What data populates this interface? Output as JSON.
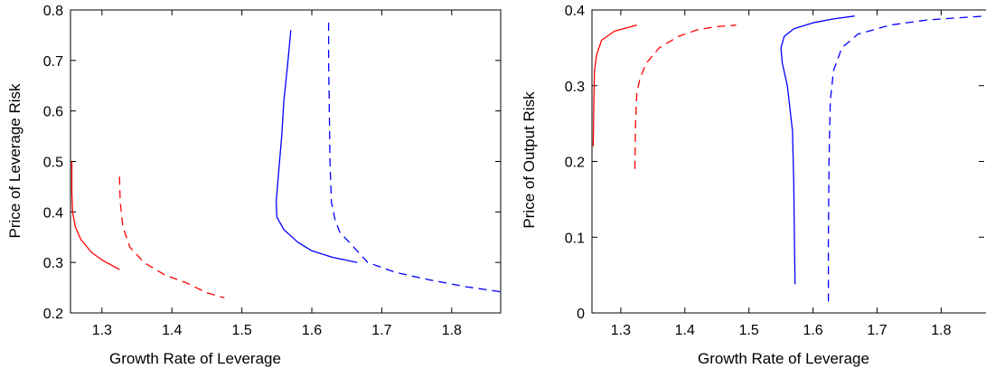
{
  "chart_data": [
    {
      "type": "line",
      "xlabel": "Growth Rate of Leverage",
      "ylabel": "Price of Leverage Risk",
      "xlim": [
        1.255,
        1.87
      ],
      "ylim": [
        0.2,
        0.8
      ],
      "xticks": [
        1.3,
        1.4,
        1.5,
        1.6,
        1.7,
        1.8
      ],
      "yticks": [
        0.2,
        0.3,
        0.4,
        0.5,
        0.6,
        0.7,
        0.8
      ],
      "grid": false,
      "series": [
        {
          "color": "#ff0000",
          "dash": "solid",
          "points": [
            [
              1.257,
              0.5
            ],
            [
              1.257,
              0.44
            ],
            [
              1.258,
              0.4
            ],
            [
              1.262,
              0.37
            ],
            [
              1.27,
              0.345
            ],
            [
              1.285,
              0.32
            ],
            [
              1.3,
              0.305
            ],
            [
              1.325,
              0.286
            ]
          ]
        },
        {
          "color": "#ff0000",
          "dash": "dashed",
          "points": [
            [
              1.325,
              0.47
            ],
            [
              1.326,
              0.42
            ],
            [
              1.33,
              0.37
            ],
            [
              1.34,
              0.33
            ],
            [
              1.36,
              0.3
            ],
            [
              1.39,
              0.275
            ],
            [
              1.42,
              0.26
            ],
            [
              1.45,
              0.24
            ],
            [
              1.475,
              0.23
            ]
          ]
        },
        {
          "color": "#0000ff",
          "dash": "solid",
          "points": [
            [
              1.57,
              0.76
            ],
            [
              1.566,
              0.7
            ],
            [
              1.56,
              0.62
            ],
            [
              1.557,
              0.55
            ],
            [
              1.552,
              0.47
            ],
            [
              1.549,
              0.42
            ],
            [
              1.55,
              0.39
            ],
            [
              1.56,
              0.365
            ],
            [
              1.58,
              0.34
            ],
            [
              1.6,
              0.323
            ],
            [
              1.63,
              0.31
            ],
            [
              1.665,
              0.3
            ]
          ]
        },
        {
          "color": "#0000ff",
          "dash": "dashed",
          "points": [
            [
              1.624,
              0.775
            ],
            [
              1.624,
              0.7
            ],
            [
              1.625,
              0.6
            ],
            [
              1.626,
              0.5
            ],
            [
              1.628,
              0.42
            ],
            [
              1.633,
              0.385
            ],
            [
              1.64,
              0.36
            ],
            [
              1.66,
              0.33
            ],
            [
              1.68,
              0.3
            ],
            [
              1.72,
              0.28
            ],
            [
              1.77,
              0.265
            ],
            [
              1.82,
              0.252
            ],
            [
              1.87,
              0.242
            ]
          ]
        }
      ]
    },
    {
      "type": "line",
      "xlabel": "Growth Rate of Leverage",
      "ylabel": "Price of Output Risk",
      "xlim": [
        1.255,
        1.87
      ],
      "ylim": [
        0,
        0.4
      ],
      "xticks": [
        1.3,
        1.4,
        1.5,
        1.6,
        1.7,
        1.8
      ],
      "yticks": [
        0,
        0.1,
        0.2,
        0.3,
        0.4
      ],
      "grid": false,
      "series": [
        {
          "color": "#ff0000",
          "dash": "solid",
          "points": [
            [
              1.257,
              0.22
            ],
            [
              1.258,
              0.28
            ],
            [
              1.259,
              0.32
            ],
            [
              1.262,
              0.34
            ],
            [
              1.27,
              0.36
            ],
            [
              1.29,
              0.372
            ],
            [
              1.325,
              0.38
            ]
          ]
        },
        {
          "color": "#ff0000",
          "dash": "dashed",
          "points": [
            [
              1.322,
              0.19
            ],
            [
              1.323,
              0.25
            ],
            [
              1.325,
              0.29
            ],
            [
              1.33,
              0.31
            ],
            [
              1.34,
              0.33
            ],
            [
              1.36,
              0.35
            ],
            [
              1.39,
              0.365
            ],
            [
              1.42,
              0.374
            ],
            [
              1.45,
              0.378
            ],
            [
              1.48,
              0.38
            ]
          ]
        },
        {
          "color": "#0000ff",
          "dash": "solid",
          "points": [
            [
              1.572,
              0.038
            ],
            [
              1.571,
              0.1
            ],
            [
              1.57,
              0.17
            ],
            [
              1.568,
              0.24
            ],
            [
              1.56,
              0.3
            ],
            [
              1.552,
              0.33
            ],
            [
              1.55,
              0.35
            ],
            [
              1.555,
              0.365
            ],
            [
              1.57,
              0.375
            ],
            [
              1.6,
              0.383
            ],
            [
              1.63,
              0.388
            ],
            [
              1.665,
              0.392
            ]
          ]
        },
        {
          "color": "#0000ff",
          "dash": "dashed",
          "points": [
            [
              1.624,
              0.015
            ],
            [
              1.624,
              0.1
            ],
            [
              1.625,
              0.2
            ],
            [
              1.627,
              0.28
            ],
            [
              1.632,
              0.32
            ],
            [
              1.645,
              0.35
            ],
            [
              1.67,
              0.368
            ],
            [
              1.72,
              0.38
            ],
            [
              1.78,
              0.387
            ],
            [
              1.87,
              0.392
            ]
          ]
        }
      ]
    }
  ]
}
